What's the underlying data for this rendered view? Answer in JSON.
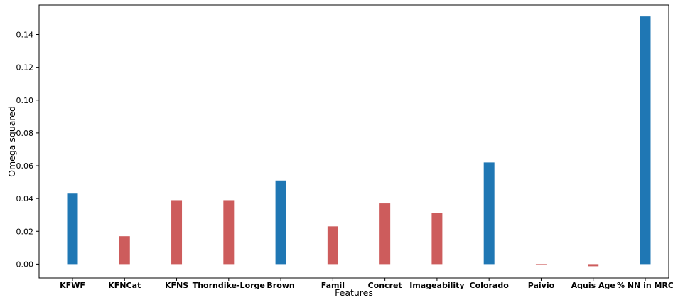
{
  "chart_data": {
    "type": "bar",
    "title": "",
    "xlabel": "Features",
    "ylabel": "Omega squared",
    "ylim": [
      -0.0085,
      0.158
    ],
    "yticks": [
      0.0,
      0.02,
      0.04,
      0.06,
      0.08,
      0.1,
      0.12,
      0.14
    ],
    "ytick_labels": [
      "0.00",
      "0.02",
      "0.04",
      "0.06",
      "0.08",
      "0.10",
      "0.12",
      "0.14"
    ],
    "categories": [
      "KFWF",
      "KFNCat",
      "KFNS",
      "Thorndike-Lorge",
      "Brown",
      "Famil",
      "Concret",
      "Imageability",
      "Colorado",
      "Paivio",
      "Aquis Age",
      "% NN in MRC"
    ],
    "values": [
      0.043,
      0.017,
      0.039,
      0.039,
      0.051,
      0.023,
      0.037,
      0.031,
      0.062,
      -0.0005,
      -0.0013,
      0.151
    ],
    "bar_colors": [
      "#1f77b4",
      "#cd5c5c",
      "#cd5c5c",
      "#cd5c5c",
      "#1f77b4",
      "#cd5c5c",
      "#cd5c5c",
      "#cd5c5c",
      "#1f77b4",
      "#cd5c5c",
      "#cd5c5c",
      "#1f77b4"
    ],
    "grid": false,
    "legend": "none"
  }
}
